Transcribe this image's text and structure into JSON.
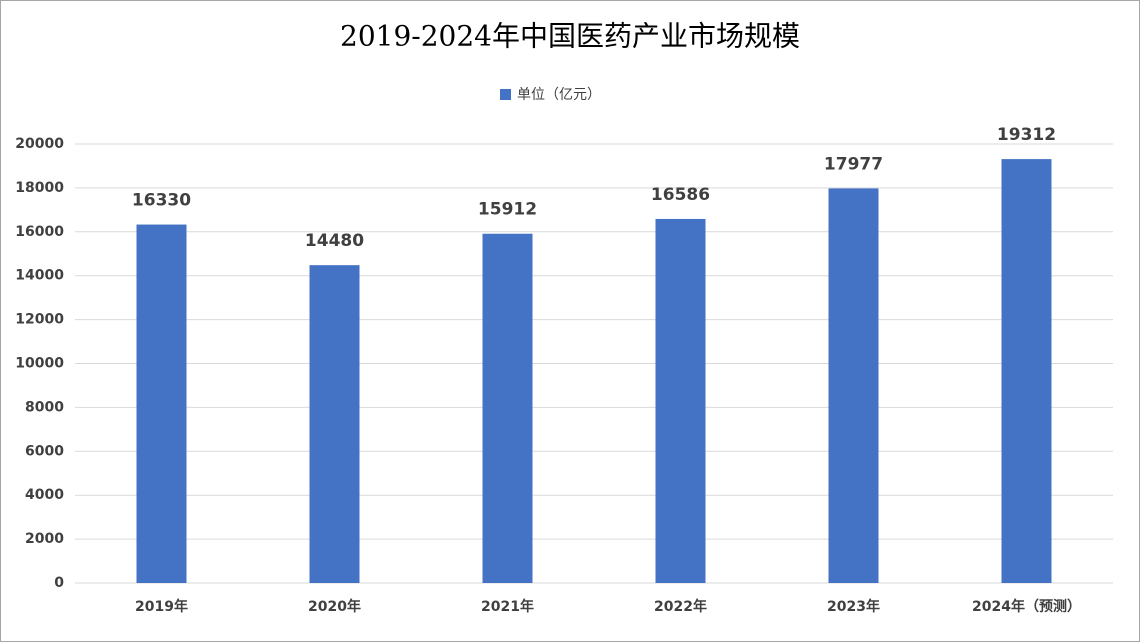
{
  "chart_data": {
    "type": "bar",
    "title": "2019-2024年中国医药产业市场规模",
    "legend": "单位（亿元）",
    "color": "#4472c4",
    "categories": [
      "2019年",
      "2020年",
      "2021年",
      "2022年",
      "2023年",
      "2024年（预测）"
    ],
    "values": [
      16330,
      14480,
      15912,
      16586,
      17977,
      19312
    ],
    "ylim": [
      0,
      20000
    ],
    "yticks": [
      0,
      2000,
      4000,
      6000,
      8000,
      10000,
      12000,
      14000,
      16000,
      18000,
      20000
    ],
    "grid": true
  }
}
